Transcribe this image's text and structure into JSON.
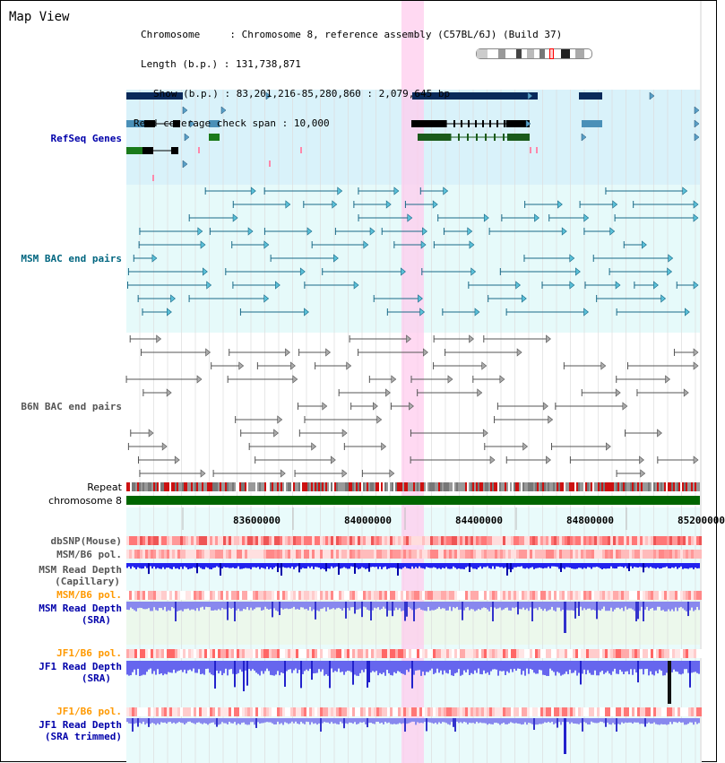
{
  "view_title": "Map View",
  "header": {
    "chromosome_label": "Chromosome",
    "chromosome_value": "Chromosome 8, reference assembly (C57BL/6J) (Build 37)",
    "length_label": "Length (b.p.)",
    "length_value": "131,738,871",
    "show_label": "Show (b.p.)",
    "show_value": "83,201,216-85,280,860 : 2,079,645 bp",
    "coverage_label": "Read coverage check span",
    "coverage_value": "10,000"
  },
  "tracks": {
    "refseq": "RefSeq Genes",
    "msm_bac": "MSM BAC end pairs",
    "b6n_bac": "B6N BAC end pairs",
    "repeat": "Repeat",
    "chromosome": "chromosome 8",
    "dbsnp": "dbSNP(Mouse)",
    "msm_b6_pol_1": "MSM/B6 pol.",
    "msm_read_depth_cap_1": "MSM Read Depth",
    "msm_read_depth_cap_2": "(Capillary)",
    "msm_b6_pol_2": "MSM/B6 pol.",
    "msm_read_depth_sra_1": "MSM Read Depth",
    "msm_read_depth_sra_2": "(SRA)",
    "jf1_b6_pol_1": "JF1/B6 pol.",
    "jf1_read_depth_sra_1": "JF1 Read Depth",
    "jf1_read_depth_sra_2": "(SRA)",
    "jf1_b6_pol_2": "JF1/B6 pol.",
    "jf1_read_depth_trim_1": "JF1 Read Depth",
    "jf1_read_depth_trim_2": "(SRA trimmed)"
  },
  "axis": {
    "ticks": [
      "83600000",
      "84000000",
      "84400000",
      "84800000",
      "85200000"
    ]
  },
  "colors": {
    "refseq_label": "#0000aa",
    "msm_label": "#006680",
    "b6n_label": "#555555",
    "orange_label": "#ff9900",
    "blue_label": "#0000aa",
    "highlight": "#ffccee",
    "refseq_bg": "#d9f2fa",
    "msm_bg": "#e6fafa"
  }
}
